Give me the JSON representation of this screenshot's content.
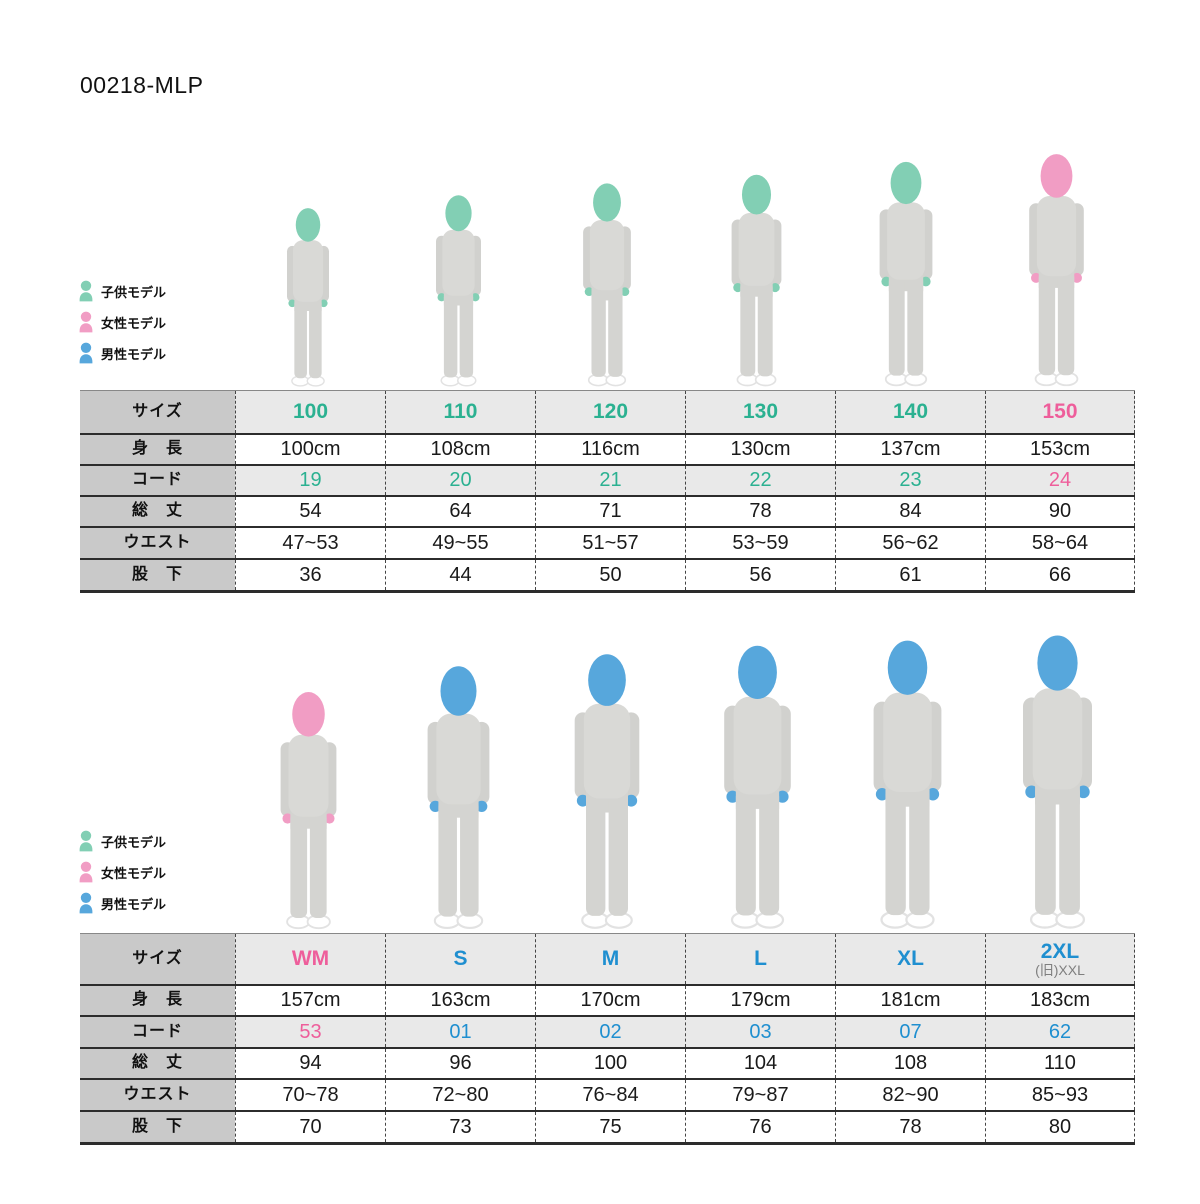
{
  "page": {
    "title": "00218-MLP"
  },
  "colors": {
    "child": "#82cfb4",
    "female": "#f19dc4",
    "male": "#57a7dc",
    "child_text": "#2bb191",
    "female_text": "#ee5e9b",
    "male_text": "#1f8fd0",
    "label_bg": "#c9c9c9",
    "shaded_bg": "#e9e9e9",
    "sub_size_text": "#7f7f7f",
    "garment": "#d9d9d6",
    "garment_dark": "#d1d1ce",
    "garment_pants": "#d4d4d1"
  },
  "legend": {
    "items": [
      {
        "id": "child",
        "label": "子供モデル"
      },
      {
        "id": "female",
        "label": "女性モデル"
      },
      {
        "id": "male",
        "label": "男性モデル"
      }
    ]
  },
  "row_labels": [
    "サイズ",
    "身　長",
    "コード",
    "総　丈",
    "ウエスト",
    "股　下"
  ],
  "tables": [
    {
      "name": "kids",
      "columns": [
        {
          "size": "100",
          "model": "child",
          "height": "100cm",
          "code": "19",
          "length": "54",
          "waist": "47~53",
          "inseam": "36"
        },
        {
          "size": "110",
          "model": "child",
          "height": "108cm",
          "code": "20",
          "length": "64",
          "waist": "49~55",
          "inseam": "44"
        },
        {
          "size": "120",
          "model": "child",
          "height": "116cm",
          "code": "21",
          "length": "71",
          "waist": "51~57",
          "inseam": "50"
        },
        {
          "size": "130",
          "model": "child",
          "height": "130cm",
          "code": "22",
          "length": "78",
          "waist": "53~59",
          "inseam": "56"
        },
        {
          "size": "140",
          "model": "child",
          "height": "137cm",
          "code": "23",
          "length": "84",
          "waist": "56~62",
          "inseam": "61"
        },
        {
          "size": "150",
          "model": "female",
          "height": "153cm",
          "code": "24",
          "length": "90",
          "waist": "58~64",
          "inseam": "66"
        }
      ]
    },
    {
      "name": "adults",
      "columns": [
        {
          "size": "WM",
          "model": "female",
          "height": "157cm",
          "code": "53",
          "length": "94",
          "waist": "70~78",
          "inseam": "70"
        },
        {
          "size": "S",
          "model": "male",
          "height": "163cm",
          "code": "01",
          "length": "96",
          "waist": "72~80",
          "inseam": "73"
        },
        {
          "size": "M",
          "model": "male",
          "height": "170cm",
          "code": "02",
          "length": "100",
          "waist": "76~84",
          "inseam": "75"
        },
        {
          "size": "L",
          "model": "male",
          "height": "179cm",
          "code": "03",
          "length": "104",
          "waist": "79~87",
          "inseam": "76"
        },
        {
          "size": "XL",
          "model": "male",
          "height": "181cm",
          "code": "07",
          "length": "108",
          "waist": "82~90",
          "inseam": "78"
        },
        {
          "size": "2XL",
          "size_sub": "(旧)XXL",
          "model": "male",
          "height": "183cm",
          "code": "62",
          "length": "110",
          "waist": "85~93",
          "inseam": "80"
        }
      ]
    }
  ]
}
